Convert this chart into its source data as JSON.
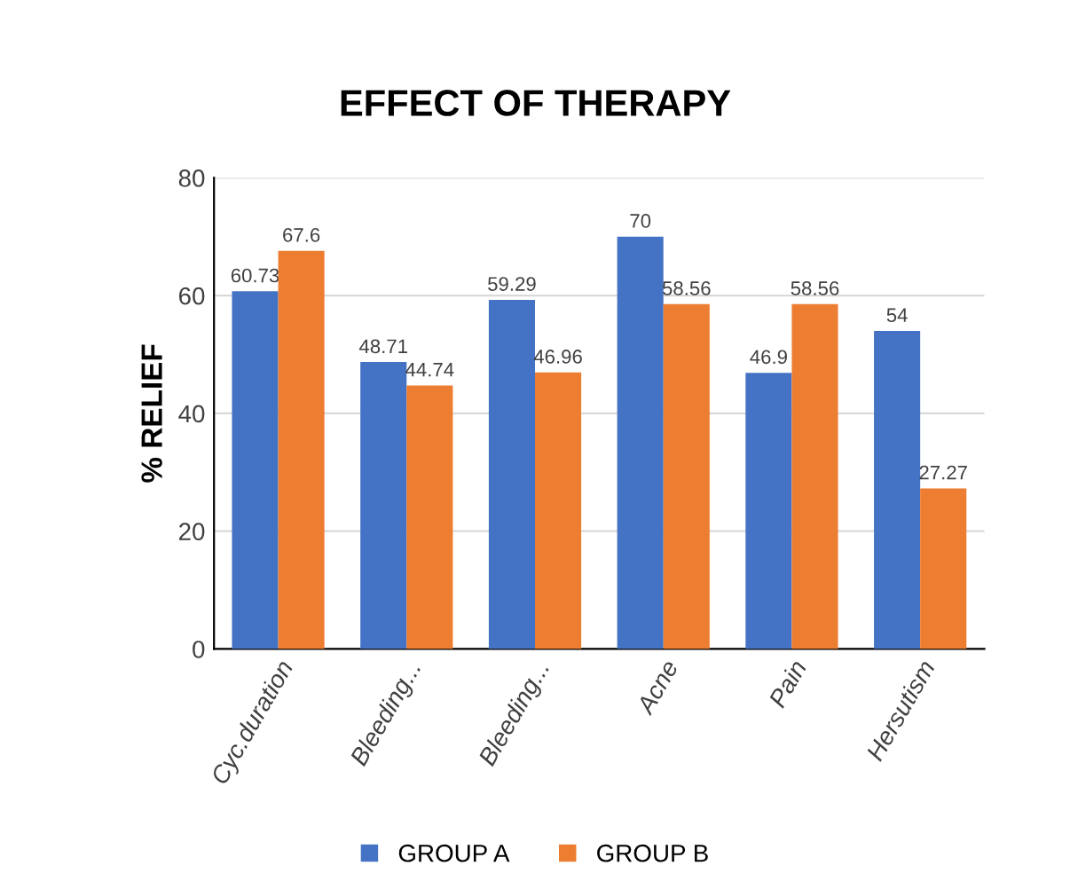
{
  "chart_data": {
    "type": "bar",
    "title": "EFFECT OF THERAPY",
    "ylabel": "% RELIEF",
    "categories": [
      "Cyc.duration",
      "Bleeding...",
      "Bleeding...",
      "Acne",
      "Pain",
      "Hersutism"
    ],
    "series": [
      {
        "name": "GROUP A",
        "color": "#4472c4",
        "values": [
          60.73,
          48.71,
          59.29,
          70,
          46.9,
          54
        ]
      },
      {
        "name": "GROUP B",
        "color": "#ed7d31",
        "values": [
          67.6,
          44.74,
          46.96,
          58.56,
          58.56,
          27.27
        ]
      }
    ],
    "ylim": [
      0,
      80
    ],
    "yticks": [
      0,
      20,
      40,
      60,
      80
    ],
    "grid": "y",
    "legend": "bottom",
    "data_labels": true
  }
}
